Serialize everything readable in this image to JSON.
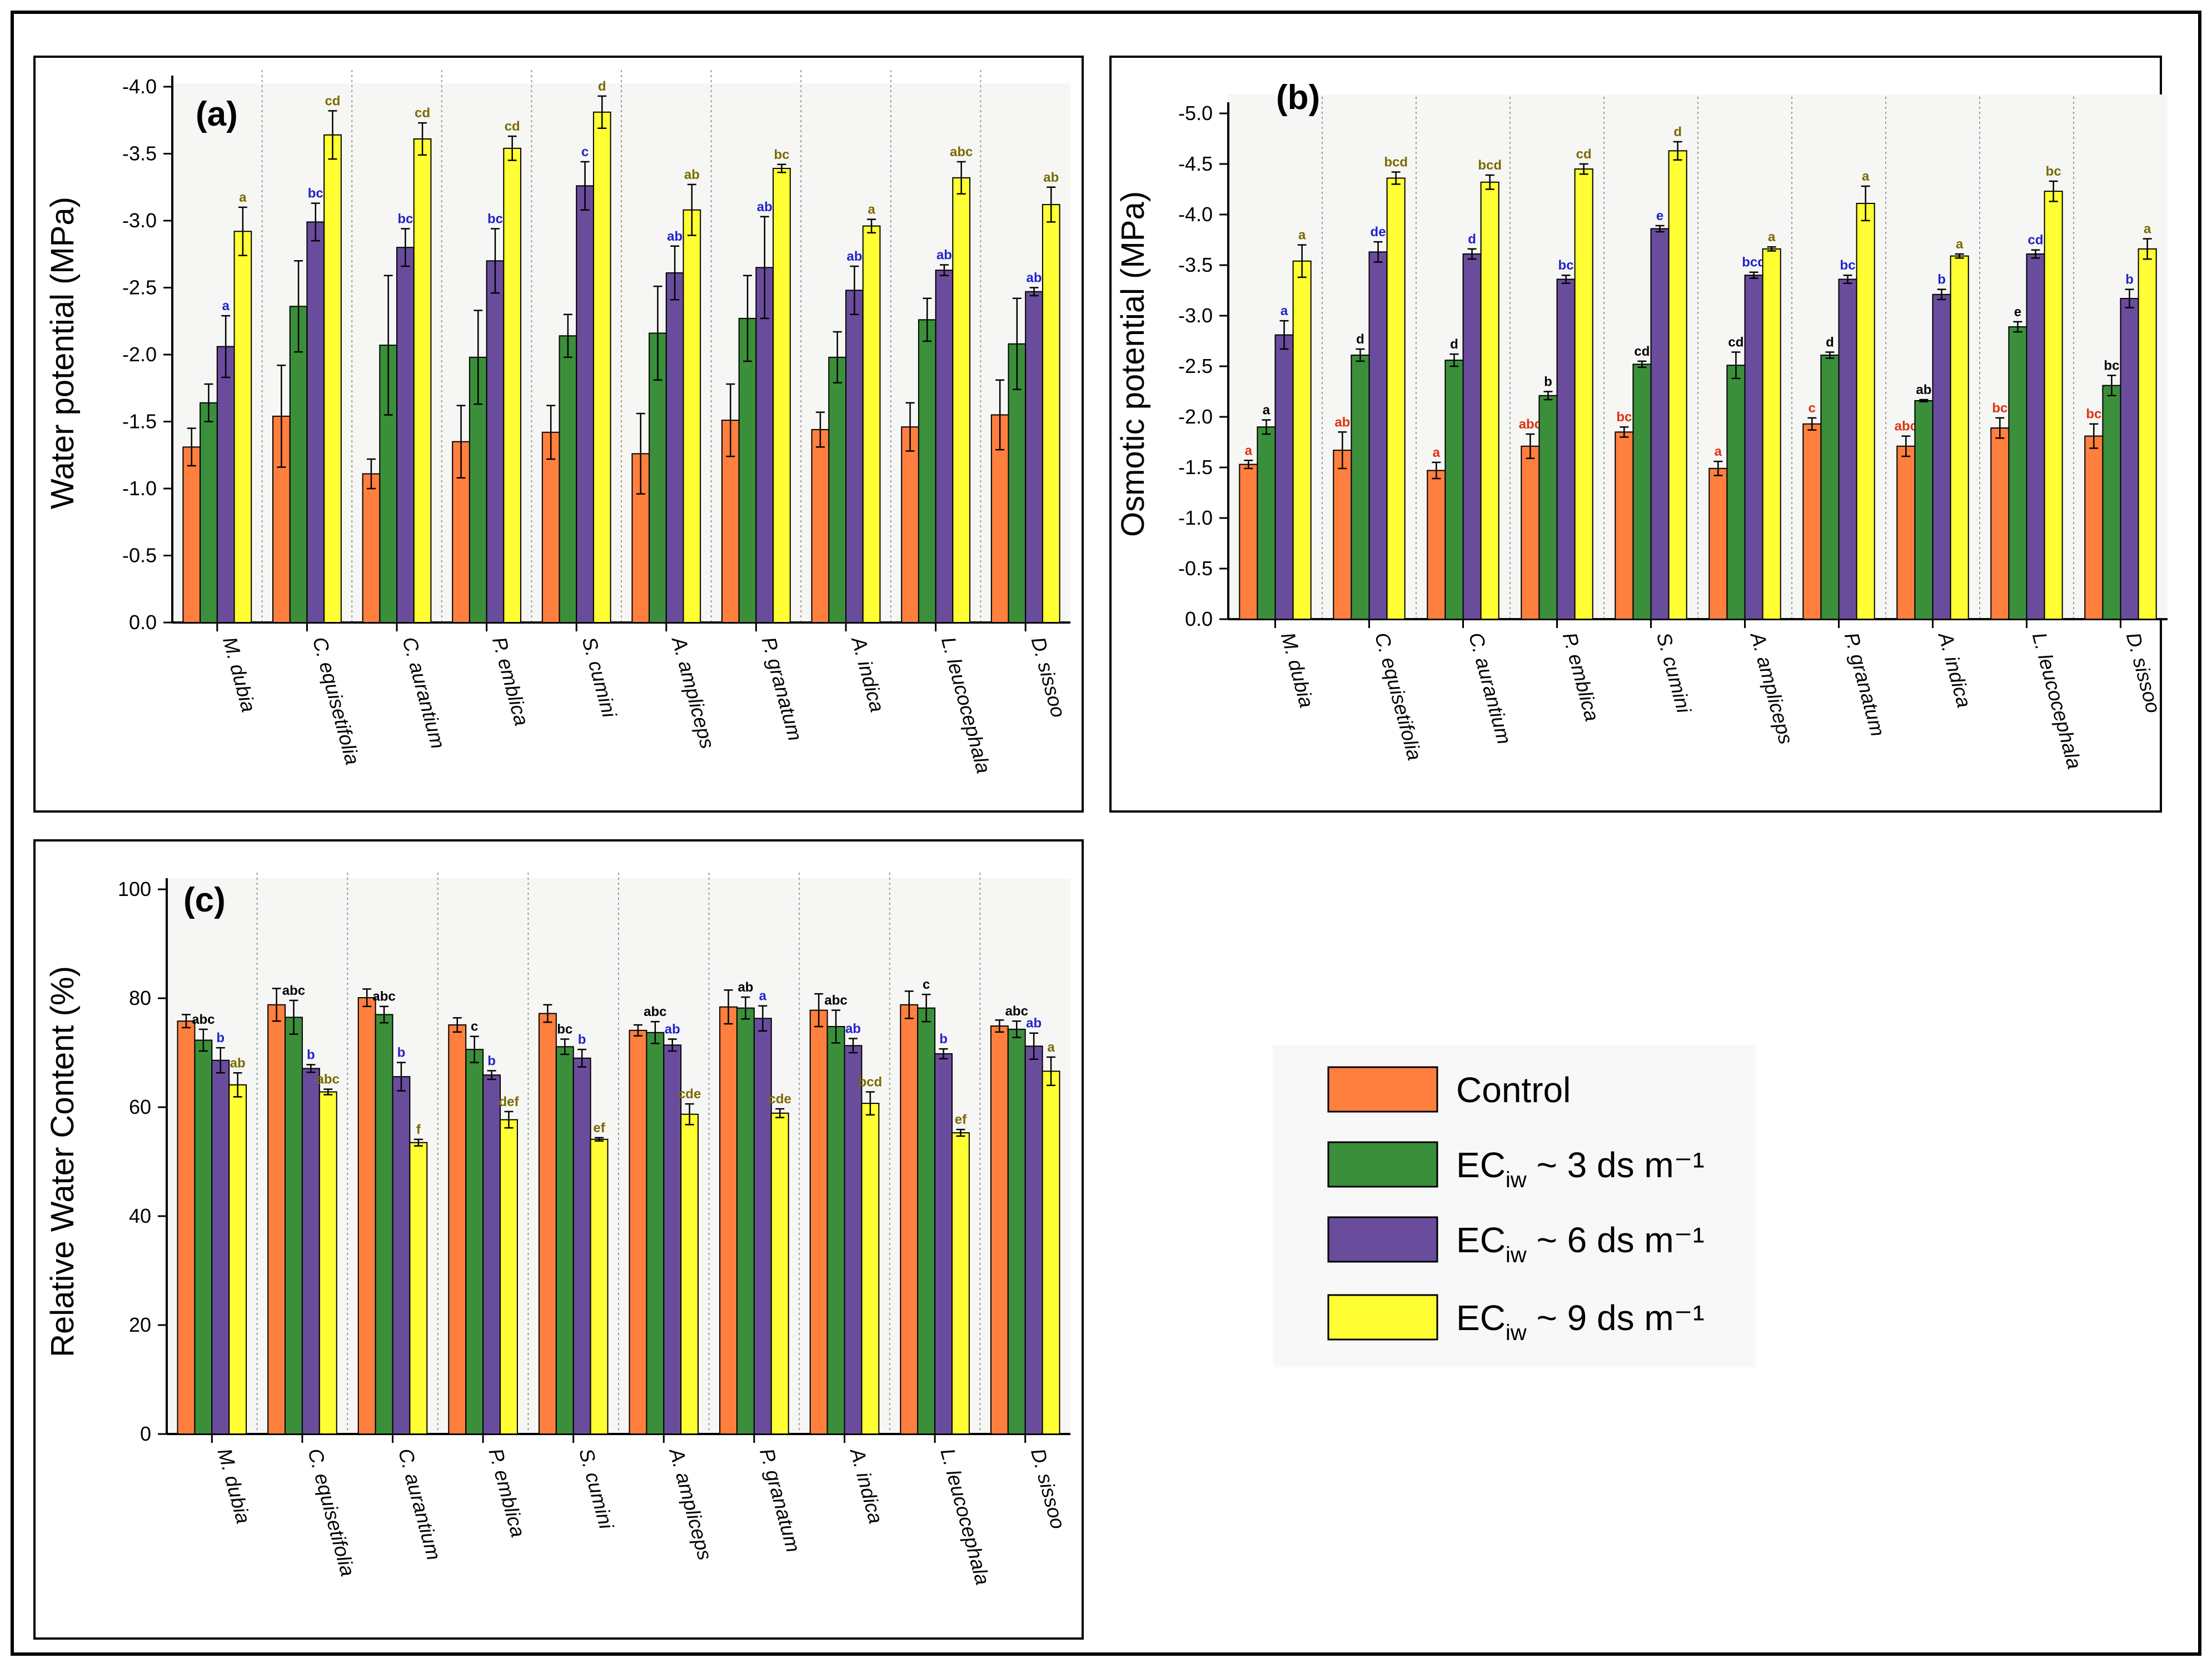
{
  "species": [
    "M. dubia",
    "C. equisetifolia",
    "C. aurantium",
    "P. emblica",
    "S. cumini",
    "A. ampliceps",
    "P. granatum",
    "A. indica",
    "L. leucocephala",
    "D. sissoo"
  ],
  "legend": {
    "items": [
      {
        "pre": "Control",
        "sub": "",
        "post": "",
        "color": "#FF7F3F"
      },
      {
        "pre": "EC",
        "sub": "iw",
        "post": " ~ 3 ds m⁻¹",
        "color": "#3B8F3B"
      },
      {
        "pre": "EC",
        "sub": "iw",
        "post": " ~ 6 ds m⁻¹",
        "color": "#6A4C9C"
      },
      {
        "pre": "EC",
        "sub": "iw",
        "post": " ~ 9 ds m⁻¹",
        "color": "#FFFF33"
      }
    ]
  },
  "chart_data": [
    {
      "id": "a",
      "type": "bar",
      "panel_label": "(a)",
      "ylabel": "Water potential (MPa)",
      "ylim": [
        0,
        -4.0
      ],
      "yticks": [
        "0.0",
        "-0.5",
        "-1.0",
        "-1.5",
        "-2.0",
        "-2.5",
        "-3.0",
        "-3.5",
        "-4.0"
      ],
      "categories": [
        "M. dubia",
        "C. equisetifolia",
        "C. aurantium",
        "P. emblica",
        "S. cumini",
        "A. ampliceps",
        "P. granatum",
        "A. indica",
        "L. leucocephala",
        "D. sissoo"
      ],
      "series": [
        {
          "name": "Control",
          "color": "#FF7F3F",
          "values": [
            -1.31,
            -1.54,
            -1.11,
            -1.35,
            -1.42,
            -1.26,
            -1.51,
            -1.44,
            -1.46,
            -1.55
          ],
          "errors": [
            0.14,
            0.38,
            0.11,
            0.27,
            0.2,
            0.3,
            0.27,
            0.13,
            0.18,
            0.26
          ],
          "labels": [
            "",
            "",
            "",
            "",
            "",
            "",
            "",
            "",
            "",
            ""
          ],
          "label_color": "#000000"
        },
        {
          "name": "EC 3",
          "color": "#3B8F3B",
          "values": [
            -1.64,
            -2.36,
            -2.07,
            -1.98,
            -2.14,
            -2.16,
            -2.27,
            -1.98,
            -2.26,
            -2.08
          ],
          "errors": [
            0.14,
            0.34,
            0.52,
            0.35,
            0.16,
            0.35,
            0.32,
            0.19,
            0.16,
            0.34
          ],
          "labels": [
            "",
            "",
            "",
            "",
            "",
            "",
            "",
            "",
            "",
            ""
          ],
          "label_color": "#000000"
        },
        {
          "name": "EC 6",
          "color": "#6A4C9C",
          "values": [
            -2.06,
            -2.99,
            -2.8,
            -2.7,
            -3.26,
            -2.61,
            -2.65,
            -2.48,
            -2.63,
            -2.47
          ],
          "errors": [
            0.23,
            0.14,
            0.14,
            0.24,
            0.18,
            0.2,
            0.38,
            0.18,
            0.04,
            0.03
          ],
          "labels": [
            "a",
            "bc",
            "bc",
            "bc",
            "c",
            "ab",
            "ab",
            "ab",
            "ab",
            "ab"
          ],
          "label_color": "#2222CC"
        },
        {
          "name": "EC 9",
          "color": "#FFFF33",
          "values": [
            -2.92,
            -3.64,
            -3.61,
            -3.54,
            -3.81,
            -3.08,
            -3.39,
            -2.96,
            -3.32,
            -3.12
          ],
          "errors": [
            0.18,
            0.18,
            0.12,
            0.09,
            0.12,
            0.19,
            0.03,
            0.05,
            0.12,
            0.13
          ],
          "labels": [
            "a",
            "cd",
            "cd",
            "cd",
            "d",
            "ab",
            "bc",
            "a",
            "abc",
            "ab"
          ],
          "label_color": "#7A6A00"
        }
      ]
    },
    {
      "id": "b",
      "type": "bar",
      "panel_label": "(b)",
      "ylabel": "Osmotic potential (MPa)",
      "ylim": [
        0,
        -5.0
      ],
      "yticks": [
        "0.0",
        "-0.5",
        "-1.0",
        "-1.5",
        "-2.0",
        "-2.5",
        "-3.0",
        "-3.5",
        "-4.0",
        "-4.5",
        "-5.0"
      ],
      "categories": [
        "M. dubia",
        "C. equisetifolia",
        "C. aurantium",
        "P. emblica",
        "S. cumini",
        "A. ampliceps",
        "P. granatum",
        "A. indica",
        "L. leucocephala",
        "D. sissoo"
      ],
      "series": [
        {
          "name": "Control",
          "color": "#FF7F3F",
          "values": [
            -1.53,
            -1.67,
            -1.47,
            -1.71,
            -1.85,
            -1.49,
            -1.93,
            -1.71,
            -1.89,
            -1.81
          ],
          "errors": [
            0.04,
            0.18,
            0.08,
            0.12,
            0.05,
            0.07,
            0.06,
            0.1,
            0.1,
            0.12
          ],
          "labels": [
            "a",
            "ab",
            "a",
            "abc",
            "bc",
            "a",
            "c",
            "abc",
            "bc",
            "bc"
          ],
          "label_color": "#E03010"
        },
        {
          "name": "EC 3",
          "color": "#3B8F3B",
          "values": [
            -1.9,
            -2.61,
            -2.56,
            -2.21,
            -2.52,
            -2.51,
            -2.61,
            -2.16,
            -2.89,
            -2.31
          ],
          "errors": [
            0.07,
            0.06,
            0.06,
            0.04,
            0.03,
            0.13,
            0.03,
            0.01,
            0.05,
            0.1
          ],
          "labels": [
            "a",
            "d",
            "d",
            "b",
            "cd",
            "cd",
            "d",
            "ab",
            "e",
            "bc"
          ],
          "label_color": "#000000"
        },
        {
          "name": "EC 6",
          "color": "#6A4C9C",
          "values": [
            -2.81,
            -3.63,
            -3.61,
            -3.36,
            -3.86,
            -3.4,
            -3.36,
            -3.21,
            -3.61,
            -3.17
          ],
          "errors": [
            0.14,
            0.1,
            0.05,
            0.04,
            0.03,
            0.03,
            0.04,
            0.05,
            0.04,
            0.09
          ],
          "labels": [
            "a",
            "de",
            "d",
            "bc",
            "e",
            "bcd",
            "bc",
            "b",
            "cd",
            "b"
          ],
          "label_color": "#2222CC"
        },
        {
          "name": "EC 9",
          "color": "#FFFF33",
          "values": [
            -3.54,
            -4.36,
            -4.32,
            -4.45,
            -4.63,
            -3.66,
            -4.11,
            -3.59,
            -4.23,
            -3.66
          ],
          "errors": [
            0.16,
            0.06,
            0.07,
            0.05,
            0.09,
            0.02,
            0.17,
            0.02,
            0.1,
            0.1
          ],
          "labels": [
            "a",
            "bcd",
            "bcd",
            "cd",
            "d",
            "a",
            "a",
            "a",
            "bc",
            "a"
          ],
          "label_color": "#7A6A00"
        }
      ]
    },
    {
      "id": "c",
      "type": "bar",
      "panel_label": "(c)",
      "ylabel": "Relative Water Content (%)",
      "ylim": [
        0,
        100
      ],
      "yticks": [
        "0",
        "20",
        "40",
        "60",
        "80",
        "100"
      ],
      "categories": [
        "M. dubia",
        "C. equisetifolia",
        "C. aurantium",
        "P. emblica",
        "S. cumini",
        "A. ampliceps",
        "P. granatum",
        "A. indica",
        "L. leucocephala",
        "D. sissoo"
      ],
      "series": [
        {
          "name": "Control",
          "color": "#FF7F3F",
          "values": [
            75.8,
            78.8,
            80.1,
            75.1,
            77.2,
            74.1,
            78.4,
            77.8,
            78.8,
            74.9
          ],
          "errors": [
            1.2,
            3.0,
            1.6,
            1.3,
            1.6,
            1.0,
            3.1,
            3.0,
            2.5,
            1.1
          ],
          "labels": [
            "",
            "",
            "",
            "",
            "",
            "",
            "",
            "",
            "",
            ""
          ],
          "label_color": "#000000"
        },
        {
          "name": "EC 3",
          "color": "#3B8F3B",
          "values": [
            72.3,
            76.5,
            77.0,
            70.6,
            71.1,
            73.7,
            78.2,
            74.8,
            78.2,
            74.3
          ],
          "errors": [
            2.0,
            3.1,
            1.5,
            2.4,
            1.4,
            2.0,
            2.0,
            3.0,
            2.5,
            1.5
          ],
          "labels": [
            "abc",
            "abc",
            "abc",
            "c",
            "bc",
            "abc",
            "ab",
            "abc",
            "c",
            "abc"
          ],
          "label_color": "#000000"
        },
        {
          "name": "EC 6",
          "color": "#6A4C9C",
          "values": [
            68.6,
            67.1,
            65.6,
            65.9,
            69.0,
            71.4,
            76.3,
            71.3,
            69.8,
            71.2
          ],
          "errors": [
            2.3,
            0.7,
            2.6,
            0.8,
            1.6,
            1.1,
            2.3,
            1.3,
            0.9,
            2.4
          ],
          "labels": [
            "b",
            "b",
            "b",
            "b",
            "b",
            "ab",
            "a",
            "ab",
            "b",
            "ab"
          ],
          "label_color": "#2222CC"
        },
        {
          "name": "EC 9",
          "color": "#FFFF33",
          "values": [
            64.1,
            62.8,
            53.5,
            57.7,
            54.1,
            58.7,
            58.9,
            60.7,
            55.3,
            66.6
          ],
          "errors": [
            2.2,
            0.5,
            0.6,
            1.5,
            0.3,
            1.9,
            0.8,
            2.1,
            0.6,
            2.6
          ],
          "labels": [
            "ab",
            "abc",
            "f",
            "def",
            "ef",
            "cde",
            "cde",
            "bcd",
            "ef",
            "a"
          ],
          "label_color": "#7A6A00"
        }
      ]
    }
  ]
}
